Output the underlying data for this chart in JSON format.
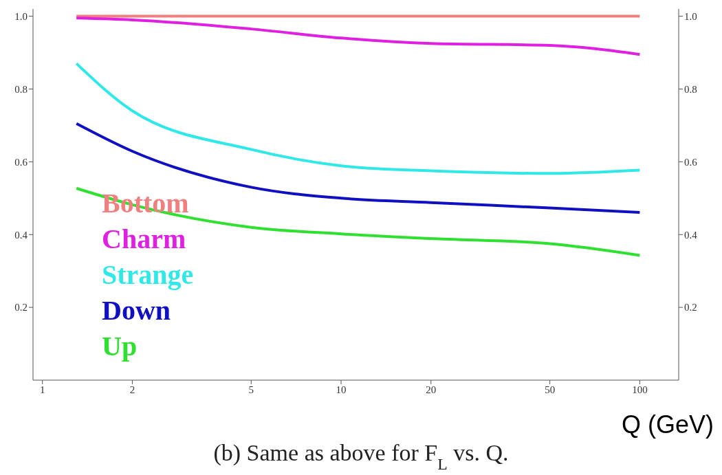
{
  "chart_data": {
    "type": "line",
    "xlabel": "Q (GeV)",
    "annotations": [
      "(b) Same as above for F$_{L}$ vs. Q."
    ],
    "x": [
      1.3,
      2,
      5,
      10,
      20,
      50,
      100
    ],
    "series": [
      {
        "name": "Bottom",
        "color": "#f08080",
        "values": [
          1.0,
          1.0,
          1.0,
          1.0,
          1.0,
          1.0,
          1.0
        ]
      },
      {
        "name": "Charm",
        "color": "#e020e0",
        "values": [
          0.995,
          0.99,
          0.965,
          0.94,
          0.925,
          0.92,
          0.895
        ]
      },
      {
        "name": "Strange",
        "color": "#30e8e8",
        "values": [
          0.87,
          0.74,
          0.634,
          0.589,
          0.575,
          0.568,
          0.577
        ]
      },
      {
        "name": "Down",
        "color": "#1010c0",
        "values": [
          0.705,
          0.629,
          0.53,
          0.5,
          0.488,
          0.473,
          0.461
        ]
      },
      {
        "name": "Up",
        "color": "#30e030",
        "values": [
          0.527,
          0.482,
          0.42,
          0.402,
          0.389,
          0.375,
          0.343
        ]
      }
    ],
    "log": "x",
    "xlim": [
      0.93,
      135
    ],
    "xticks": [
      1,
      2,
      5,
      10,
      20,
      50,
      100
    ],
    "ylim": [
      0,
      1.02
    ],
    "yticks": [
      0.2,
      0.4,
      0.6,
      0.8,
      {
        "value": 1,
        "label": "1.0"
      }
    ],
    "y2lim": [
      0,
      1.02
    ],
    "y2ticks": [
      0.2,
      0.4,
      0.6,
      0.8,
      {
        "value": 1,
        "label": "1.0"
      }
    ],
    "legend": "bottom left",
    "grid": false,
    "marker": "none",
    "line_style": "solid"
  }
}
